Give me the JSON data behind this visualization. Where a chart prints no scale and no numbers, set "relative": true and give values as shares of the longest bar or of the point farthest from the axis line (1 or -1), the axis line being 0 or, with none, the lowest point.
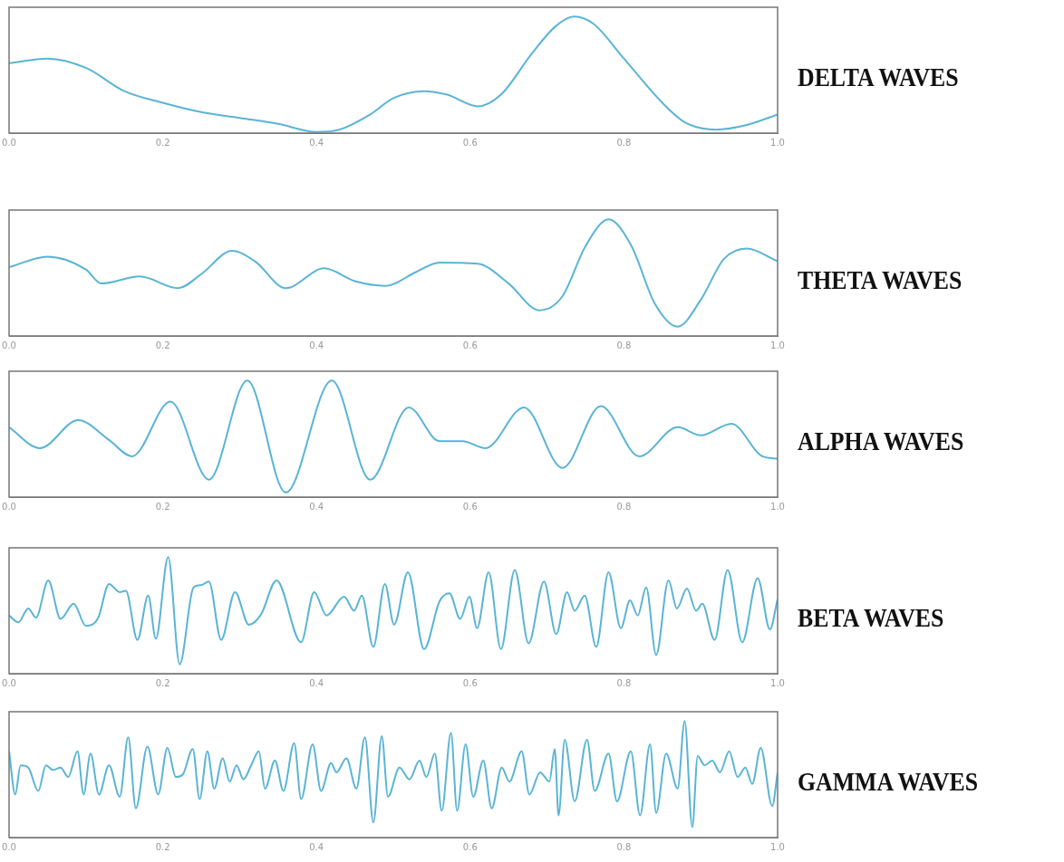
{
  "chart_data": [
    {
      "type": "line",
      "title": "DELTA WAVES",
      "color": "#5ab4d6",
      "relative": true,
      "xlim": [
        0,
        1
      ],
      "xticks": [
        {
          "value": 0,
          "label": "0.0"
        },
        {
          "value": 0.2,
          "label": "0.2"
        },
        {
          "value": 0.4,
          "label": "0.4"
        },
        {
          "value": 0.6,
          "label": "0.6"
        },
        {
          "value": 0.8,
          "label": "0.8"
        },
        {
          "value": 1,
          "label": "1.0"
        }
      ],
      "x": [
        0,
        0.05,
        0.1,
        0.15,
        0.2,
        0.25,
        0.3,
        0.35,
        0.4,
        0.43,
        0.47,
        0.5,
        0.54,
        0.57,
        0.61,
        0.64,
        0.68,
        0.71,
        0.735,
        0.76,
        0.8,
        0.85,
        0.88,
        0.92,
        0.96,
        1.0
      ],
      "values": [
        0.6,
        0.64,
        0.56,
        0.36,
        0.26,
        0.18,
        0.13,
        0.08,
        0.01,
        0.03,
        0.16,
        0.3,
        0.36,
        0.33,
        0.23,
        0.33,
        0.68,
        0.91,
        1,
        0.94,
        0.64,
        0.26,
        0.09,
        0.03,
        0.07,
        0.16
      ]
    },
    {
      "type": "line",
      "title": "THETA WAVES",
      "color": "#5ab4d6",
      "relative": true,
      "xlim": [
        0,
        1
      ],
      "xticks": [
        {
          "value": 0,
          "label": "0.0"
        },
        {
          "value": 0.2,
          "label": "0.2"
        },
        {
          "value": 0.4,
          "label": "0.4"
        },
        {
          "value": 0.6,
          "label": "0.6"
        },
        {
          "value": 0.8,
          "label": "0.8"
        },
        {
          "value": 1,
          "label": "1.0"
        }
      ],
      "x": [
        0,
        0.05,
        0.1,
        0.12,
        0.17,
        0.22,
        0.25,
        0.29,
        0.32,
        0.36,
        0.41,
        0.45,
        0.49,
        0.53,
        0.56,
        0.61,
        0.65,
        0.69,
        0.72,
        0.75,
        0.78,
        0.81,
        0.84,
        0.87,
        0.9,
        0.93,
        0.96,
        1.0
      ],
      "values": [
        0.59,
        0.68,
        0.57,
        0.45,
        0.51,
        0.41,
        0.53,
        0.73,
        0.64,
        0.41,
        0.58,
        0.47,
        0.43,
        0.55,
        0.63,
        0.62,
        0.45,
        0.22,
        0.34,
        0.77,
        1,
        0.77,
        0.28,
        0.08,
        0.31,
        0.66,
        0.75,
        0.64
      ]
    },
    {
      "type": "line",
      "title": "ALPHA WAVES",
      "color": "#5ab4d6",
      "relative": true,
      "xlim": [
        0,
        1
      ],
      "xticks": [
        {
          "value": 0,
          "label": "0.0"
        },
        {
          "value": 0.2,
          "label": "0.2"
        },
        {
          "value": 0.4,
          "label": "0.4"
        },
        {
          "value": 0.6,
          "label": "0.6"
        },
        {
          "value": 0.8,
          "label": "0.8"
        },
        {
          "value": 1,
          "label": "1.0"
        }
      ],
      "x": [
        0,
        0.04,
        0.09,
        0.13,
        0.16,
        0.21,
        0.26,
        0.31,
        0.36,
        0.42,
        0.47,
        0.52,
        0.56,
        0.59,
        0.62,
        0.67,
        0.72,
        0.77,
        0.82,
        0.87,
        0.9,
        0.94,
        0.98,
        1.0
      ],
      "values": [
        0.6,
        0.42,
        0.66,
        0.49,
        0.35,
        0.82,
        0.15,
        1,
        0.04,
        1,
        0.15,
        0.77,
        0.48,
        0.48,
        0.42,
        0.77,
        0.25,
        0.78,
        0.35,
        0.6,
        0.53,
        0.63,
        0.35,
        0.33
      ]
    },
    {
      "type": "line",
      "title": "BETA WAVES",
      "color": "#5ab4d6",
      "relative": true,
      "xlim": [
        0,
        1
      ],
      "xticks": [
        {
          "value": 0,
          "label": "0.0"
        },
        {
          "value": 0.2,
          "label": "0.2"
        },
        {
          "value": 0.4,
          "label": "0.4"
        },
        {
          "value": 0.6,
          "label": "0.6"
        },
        {
          "value": 0.8,
          "label": "0.8"
        },
        {
          "value": 1,
          "label": "1.0"
        }
      ],
      "x": [
        0,
        0.012,
        0.025,
        0.035,
        0.051,
        0.067,
        0.084,
        0.1,
        0.116,
        0.13,
        0.144,
        0.152,
        0.167,
        0.181,
        0.191,
        0.207,
        0.222,
        0.24,
        0.25,
        0.26,
        0.276,
        0.294,
        0.312,
        0.328,
        0.348,
        0.38,
        0.397,
        0.413,
        0.436,
        0.449,
        0.459,
        0.474,
        0.489,
        0.501,
        0.519,
        0.54,
        0.56,
        0.573,
        0.587,
        0.599,
        0.609,
        0.624,
        0.64,
        0.658,
        0.676,
        0.696,
        0.712,
        0.726,
        0.736,
        0.749,
        0.764,
        0.78,
        0.796,
        0.808,
        0.818,
        0.829,
        0.842,
        0.858,
        0.869,
        0.882,
        0.894,
        0.902,
        0.918,
        0.935,
        0.954,
        0.974,
        0.99,
        1.0
      ],
      "values": [
        0.5,
        0.44,
        0.56,
        0.48,
        0.8,
        0.47,
        0.6,
        0.41,
        0.48,
        0.77,
        0.7,
        0.71,
        0.29,
        0.67,
        0.3,
        1,
        0.08,
        0.74,
        0.76,
        0.79,
        0.29,
        0.7,
        0.42,
        0.51,
        0.8,
        0.27,
        0.7,
        0.5,
        0.66,
        0.54,
        0.67,
        0.23,
        0.77,
        0.42,
        0.87,
        0.21,
        0.62,
        0.69,
        0.47,
        0.66,
        0.39,
        0.87,
        0.21,
        0.89,
        0.26,
        0.79,
        0.34,
        0.7,
        0.54,
        0.67,
        0.23,
        0.87,
        0.39,
        0.63,
        0.5,
        0.74,
        0.16,
        0.8,
        0.56,
        0.73,
        0.54,
        0.6,
        0.29,
        0.89,
        0.27,
        0.82,
        0.38,
        0.64
      ]
    },
    {
      "type": "line",
      "title": "GAMMA WAVES",
      "color": "#5ab4d6",
      "relative": true,
      "xlim": [
        0,
        1
      ],
      "xticks": [
        {
          "value": 0,
          "label": "0.0"
        },
        {
          "value": 0.2,
          "label": "0.2"
        },
        {
          "value": 0.4,
          "label": "0.4"
        },
        {
          "value": 0.6,
          "label": "0.6"
        },
        {
          "value": 0.8,
          "label": "0.8"
        },
        {
          "value": 1,
          "label": "1.0"
        }
      ],
      "x": [
        0,
        0.008,
        0.015,
        0.025,
        0.038,
        0.048,
        0.057,
        0.067,
        0.077,
        0.089,
        0.097,
        0.106,
        0.117,
        0.13,
        0.144,
        0.155,
        0.165,
        0.18,
        0.194,
        0.206,
        0.217,
        0.226,
        0.239,
        0.248,
        0.258,
        0.267,
        0.278,
        0.287,
        0.296,
        0.305,
        0.315,
        0.325,
        0.333,
        0.346,
        0.357,
        0.371,
        0.38,
        0.395,
        0.406,
        0.419,
        0.426,
        0.439,
        0.452,
        0.463,
        0.474,
        0.485,
        0.493,
        0.508,
        0.521,
        0.534,
        0.543,
        0.554,
        0.563,
        0.575,
        0.583,
        0.594,
        0.604,
        0.617,
        0.628,
        0.641,
        0.651,
        0.667,
        0.677,
        0.691,
        0.703,
        0.71,
        0.715,
        0.723,
        0.736,
        0.752,
        0.762,
        0.78,
        0.791,
        0.809,
        0.821,
        0.834,
        0.842,
        0.855,
        0.87,
        0.879,
        0.889,
        0.896,
        0.905,
        0.915,
        0.925,
        0.937,
        0.948,
        0.958,
        0.967,
        0.978,
        0.993,
        1.0
      ],
      "values": [
        0.74,
        0.37,
        0.62,
        0.6,
        0.4,
        0.62,
        0.58,
        0.6,
        0.52,
        0.74,
        0.37,
        0.72,
        0.37,
        0.62,
        0.35,
        0.86,
        0.25,
        0.78,
        0.37,
        0.77,
        0.52,
        0.54,
        0.76,
        0.33,
        0.74,
        0.42,
        0.68,
        0.48,
        0.62,
        0.5,
        0.62,
        0.74,
        0.42,
        0.66,
        0.4,
        0.81,
        0.33,
        0.8,
        0.4,
        0.64,
        0.56,
        0.68,
        0.42,
        0.86,
        0.13,
        0.87,
        0.35,
        0.6,
        0.5,
        0.66,
        0.52,
        0.72,
        0.23,
        0.9,
        0.23,
        0.8,
        0.35,
        0.66,
        0.25,
        0.6,
        0.48,
        0.74,
        0.37,
        0.56,
        0.48,
        0.76,
        0.19,
        0.84,
        0.31,
        0.84,
        0.4,
        0.72,
        0.31,
        0.74,
        0.19,
        0.8,
        0.21,
        0.72,
        0.42,
        1,
        0.09,
        0.7,
        0.62,
        0.66,
        0.56,
        0.74,
        0.52,
        0.6,
        0.46,
        0.77,
        0.27,
        0.56
      ]
    }
  ]
}
